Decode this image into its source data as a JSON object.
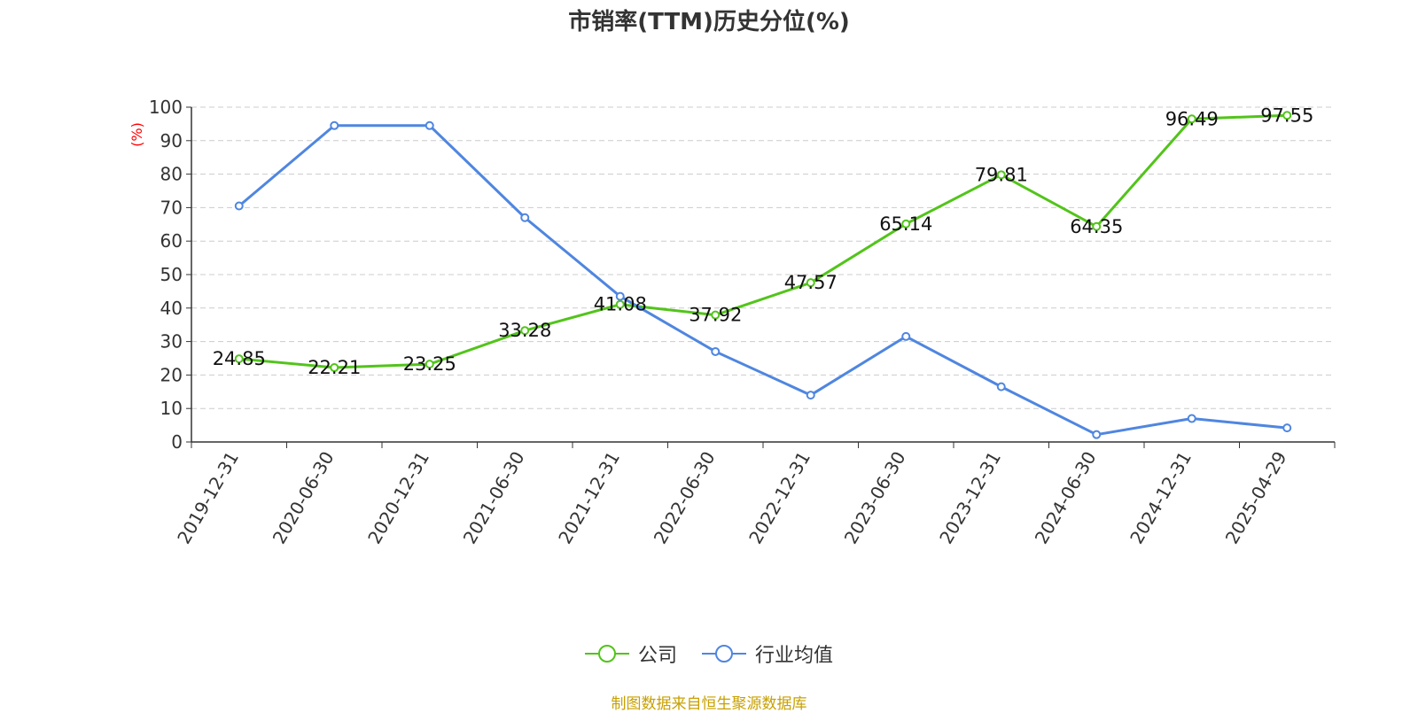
{
  "title": "市销率(TTM)历史分位(%)",
  "source": "制图数据来自恒生聚源数据库",
  "colors": {
    "company": "#52c41a",
    "industry": "#4f86e0",
    "ylabel": "#ff0000",
    "source": "#c8a000",
    "grid": "#cccccc",
    "axis": "#333333"
  },
  "chart_data": {
    "type": "line",
    "title": "市销率(TTM)历史分位(%)",
    "ylabel": "(%)",
    "xlabel": "",
    "ylim": [
      0,
      100
    ],
    "yticks": [
      0,
      10,
      20,
      30,
      40,
      50,
      60,
      70,
      80,
      90,
      100
    ],
    "grid": true,
    "legend_position": "bottom",
    "categories": [
      "2019-12-31",
      "2020-06-30",
      "2020-12-31",
      "2021-06-30",
      "2021-12-31",
      "2022-06-30",
      "2022-12-31",
      "2023-06-30",
      "2023-12-31",
      "2024-06-30",
      "2024-12-31",
      "2025-04-29"
    ],
    "series": [
      {
        "name": "公司",
        "values": [
          24.85,
          22.21,
          23.25,
          33.28,
          41.08,
          37.92,
          47.57,
          65.14,
          79.81,
          64.35,
          96.49,
          97.55
        ],
        "labels": [
          "24.85",
          "22.21",
          "23.25",
          "33.28",
          "41.08",
          "37.92",
          "47.57",
          "65.14",
          "79.81",
          "64.35",
          "96.49",
          "97.55"
        ]
      },
      {
        "name": "行业均值",
        "values": [
          70.5,
          94.5,
          94.5,
          67.0,
          43.5,
          27.0,
          14.0,
          31.5,
          16.5,
          2.2,
          7.0,
          4.2
        ]
      }
    ]
  }
}
